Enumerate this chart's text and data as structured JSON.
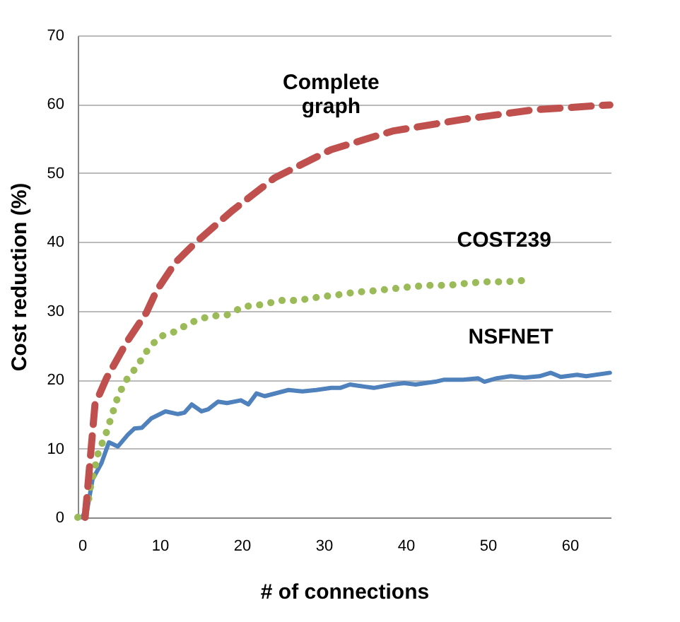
{
  "chart_data": {
    "type": "line",
    "xlabel": "# of connections",
    "ylabel": "Cost   reduction (%)",
    "xlim": [
      0,
      65
    ],
    "xticks": [
      0,
      10,
      20,
      30,
      40,
      50,
      60
    ],
    "ylim": [
      0,
      70
    ],
    "yticks": [
      0,
      10,
      20,
      30,
      40,
      50,
      60,
      70
    ],
    "grid": "y",
    "legend": false,
    "marker": "none",
    "series": [
      {
        "name": "Complete graph",
        "color": "#c0504d",
        "line_style": "dashed",
        "x": [
          0.9,
          2.1,
          3.5,
          6.0,
          8.4,
          9.6,
          11.9,
          14.2,
          18.8,
          24.0,
          30.9,
          38.4,
          47.0,
          55.7,
          64.9
        ],
        "values": [
          0,
          16.4,
          20.2,
          25.5,
          29.8,
          32.9,
          37.0,
          39.7,
          44.5,
          49.3,
          53.4,
          56.1,
          57.8,
          59.2,
          59.9
        ]
      },
      {
        "name": "COST239",
        "color": "#9bbb59",
        "line_style": "dotted",
        "x": [
          0,
          1.2,
          1.5,
          2.0,
          2.5,
          3.4,
          4.1,
          4.8,
          5.7,
          7.2,
          8.4,
          9.9,
          11.9,
          13.8,
          16.0,
          18.2,
          20.2,
          22.5,
          24.7,
          26.8,
          29.4,
          31.6,
          33.9,
          36.1,
          38.4,
          40.7,
          42.9,
          45.2,
          47.5,
          49.7,
          52.0,
          54.4
        ],
        "values": [
          0,
          1.4,
          4.1,
          6.8,
          9.4,
          12.0,
          14.6,
          17.2,
          19.6,
          21.9,
          24.1,
          26.2,
          27.0,
          28.3,
          29.2,
          29.4,
          30.6,
          30.9,
          31.5,
          31.5,
          32.0,
          32.3,
          32.7,
          32.9,
          33.2,
          33.5,
          33.7,
          33.7,
          34.0,
          34.2,
          34.2,
          34.4
        ]
      },
      {
        "name": "NSFNET",
        "color": "#4f81bd",
        "line_style": "solid",
        "x": [
          0.5,
          1.2,
          1.8,
          2.9,
          3.8,
          4.9,
          6.1,
          6.9,
          7.8,
          9.0,
          10.7,
          12.2,
          13.0,
          13.9,
          15.1,
          15.9,
          17.1,
          18.2,
          19.9,
          20.8,
          21.8,
          22.8,
          25.7,
          27.4,
          29.1,
          30.9,
          32.0,
          33.2,
          34.9,
          36.1,
          38.4,
          39.8,
          41.2,
          43.6,
          44.7,
          47.0,
          48.8,
          49.6,
          51.1,
          52.8,
          54.5,
          56.3,
          57.7,
          58.9,
          60.9,
          62.0,
          64.9
        ],
        "values": [
          0,
          1.4,
          5.5,
          7.9,
          10.9,
          10.3,
          12.0,
          12.9,
          13.0,
          14.4,
          15.4,
          15.0,
          15.2,
          16.4,
          15.4,
          15.7,
          16.8,
          16.6,
          17.0,
          16.4,
          18.0,
          17.6,
          18.5,
          18.3,
          18.5,
          18.8,
          18.8,
          19.3,
          19.0,
          18.8,
          19.3,
          19.5,
          19.3,
          19.7,
          20.0,
          20.0,
          20.2,
          19.7,
          20.2,
          20.5,
          20.3,
          20.5,
          21.0,
          20.4,
          20.7,
          20.5,
          21.0
        ]
      }
    ]
  }
}
